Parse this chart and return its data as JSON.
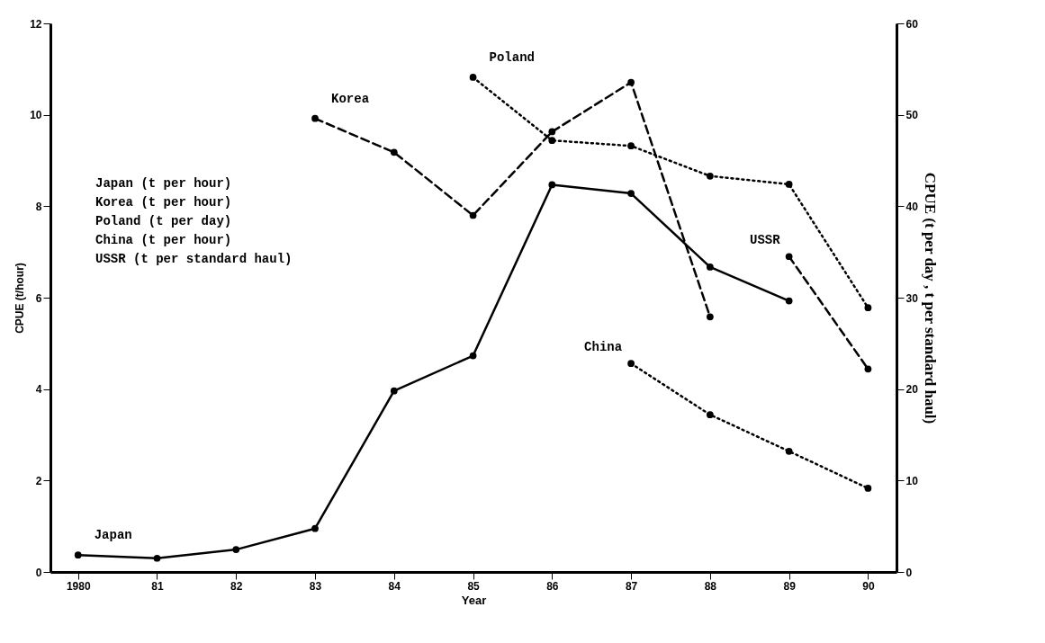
{
  "chart_data": {
    "type": "line",
    "xlabel": "Year",
    "ylabel": "CPUE (t/hour)",
    "y2label": "CPUE  (t per day , t per standard haul)",
    "xlim": [
      1979.65,
      1990.36
    ],
    "xticks": [
      1980,
      {
        "value": 1981,
        "label": "81"
      },
      {
        "value": 1982,
        "label": "82"
      },
      {
        "value": 1983,
        "label": "83"
      },
      {
        "value": 1984,
        "label": "84"
      },
      {
        "value": 1985,
        "label": "85"
      },
      {
        "value": 1986,
        "label": "86"
      },
      {
        "value": 1987,
        "label": "87"
      },
      {
        "value": 1988,
        "label": "88"
      },
      {
        "value": 1989,
        "label": "89"
      },
      {
        "value": 1990,
        "label": "90"
      }
    ],
    "ylim": [
      0,
      12
    ],
    "yticks": [
      0,
      2,
      4,
      6,
      8,
      10,
      12
    ],
    "y2lim": [
      0,
      60
    ],
    "y2ticks": [
      0,
      10,
      20,
      30,
      40,
      50,
      60
    ],
    "grid": false,
    "legend": false,
    "marker": "circle",
    "series": [
      {
        "name": "Japan",
        "color": "#000000",
        "line_style": "solid",
        "x": [
          1980,
          1981,
          1982,
          1983,
          1984,
          1985,
          1986,
          1987,
          1988,
          1989
        ],
        "values": [
          0.37,
          0.3,
          0.49,
          0.95,
          3.96,
          4.73,
          8.47,
          8.28,
          6.67,
          5.93
        ]
      },
      {
        "name": "Korea",
        "color": "#000000",
        "line_style": "dashed",
        "x": [
          1983,
          1984,
          1985,
          1986,
          1987,
          1988
        ],
        "values": [
          9.92,
          9.18,
          7.8,
          9.63,
          10.71,
          5.58
        ]
      },
      {
        "name": "Poland",
        "color": "#000000",
        "line_style": "dotted",
        "axis": "y2",
        "x": [
          1985,
          1986,
          1987,
          1988,
          1989,
          1990
        ],
        "values": [
          54.1,
          47.2,
          46.6,
          43.3,
          42.4,
          28.9
        ]
      },
      {
        "name": "China",
        "color": "#000000",
        "line_style": "dotted",
        "x": [
          1987,
          1988,
          1989,
          1990
        ],
        "values": [
          4.56,
          3.44,
          2.64,
          1.83
        ]
      },
      {
        "name": "USSR",
        "color": "#000000",
        "line_style": "dashed",
        "axis": "y2",
        "x": [
          1989,
          1990
        ],
        "values": [
          34.5,
          22.2
        ]
      }
    ],
    "annotations": [
      "Japan  (t per hour)",
      "Korea  (t per hour)",
      "Poland (t per day)",
      "China  (t per hour)",
      "USSR   (t per standard haul)"
    ]
  }
}
